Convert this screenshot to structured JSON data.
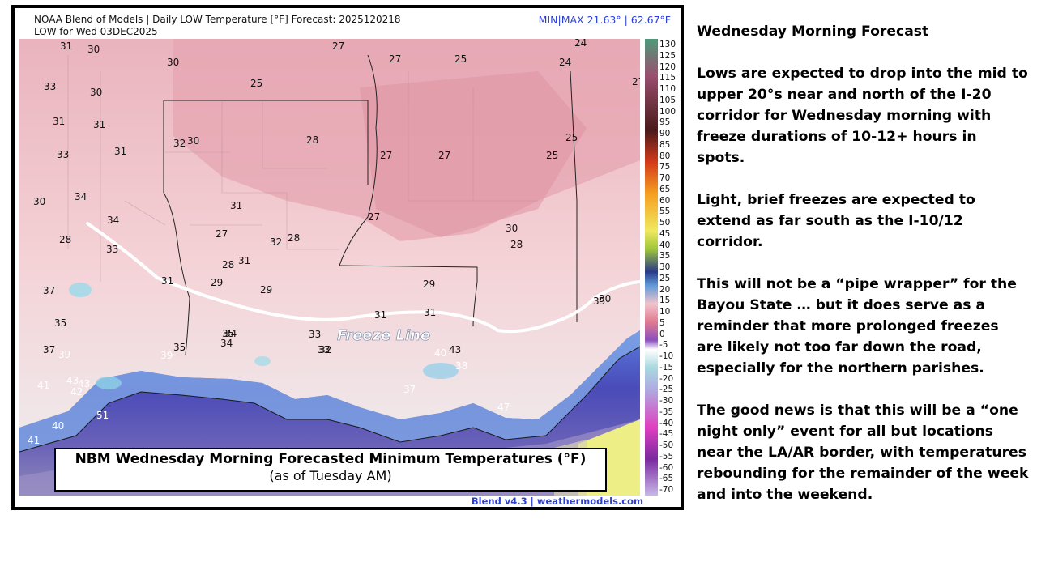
{
  "map": {
    "title": "NOAA Blend of Models | Daily LOW Temperature [°F] Forecast: 2025120218",
    "valid": "LOW for Wed 03DEC2025",
    "minmax": "MIN|MAX 21.63°  |  62.67°F",
    "credit": "Blend v4.3 | weathermodels.com",
    "freeze_line_label": "Freeze Line",
    "caption_title": "NBM Wednesday Morning Forecasted Minimum Temperatures (°F)",
    "caption_sub": "(as of Tuesday AM)",
    "scale_labels": [
      "130",
      "125",
      "120",
      "115",
      "110",
      "105",
      "100",
      "95",
      "90",
      "85",
      "80",
      "75",
      "70",
      "65",
      "60",
      "55",
      "50",
      "45",
      "40",
      "35",
      "30",
      "25",
      "20",
      "15",
      "10",
      "5",
      "0",
      "-5",
      "-10",
      "-15",
      "-20",
      "-25",
      "-30",
      "-35",
      "-40",
      "-45",
      "-50",
      "-55",
      "-60",
      "-65",
      "-70"
    ],
    "temps": [
      "31",
      "30",
      "30",
      "27",
      "27",
      "25",
      "24",
      "24",
      "27",
      "33",
      "30",
      "25",
      "31",
      "31",
      "32",
      "30",
      "31",
      "28",
      "27",
      "27",
      "25",
      "25",
      "33",
      "30",
      "34",
      "34",
      "31",
      "27",
      "27",
      "28",
      "33",
      "32",
      "28",
      "28",
      "31",
      "30",
      "28",
      "29",
      "29",
      "31",
      "31",
      "29",
      "37",
      "31",
      "30",
      "35",
      "33",
      "35",
      "35",
      "34",
      "33",
      "37",
      "34",
      "32",
      "40",
      "43",
      "39",
      "39",
      "35",
      "38",
      "41",
      "43",
      "43",
      "42",
      "37",
      "47",
      "51",
      "40",
      "41"
    ],
    "colors": {
      "pink": "#f2c6cc",
      "deep_pink": "#e4a1ad",
      "light": "#e6eaec",
      "cyan": "#8fd6e8",
      "blue": "#5068d6",
      "deep_blue": "#3a2f9a",
      "purple": "#6a55b0",
      "yellow": "#f4f07a"
    }
  },
  "panel": {
    "heading": "Wednesday Morning Forecast",
    "p1": "Lows are expected to drop into the mid to upper 20°s near and north of the I-20 corridor for Wednesday morning with freeze durations of 10-12+ hours in spots.",
    "p2": "Light, brief freezes are expected to extend as far south as the I-10/12 corridor.",
    "p3": "This will not be a “pipe wrapper” for the Bayou State … but it does serve as a reminder that more prolonged freezes are likely not too far down the road, especially for the northern parishes.",
    "p4": "The good news is that this will be a “one night only” event for all but locations near the LA/AR border, with temperatures rebounding for the remainder of the week and into the weekend."
  }
}
